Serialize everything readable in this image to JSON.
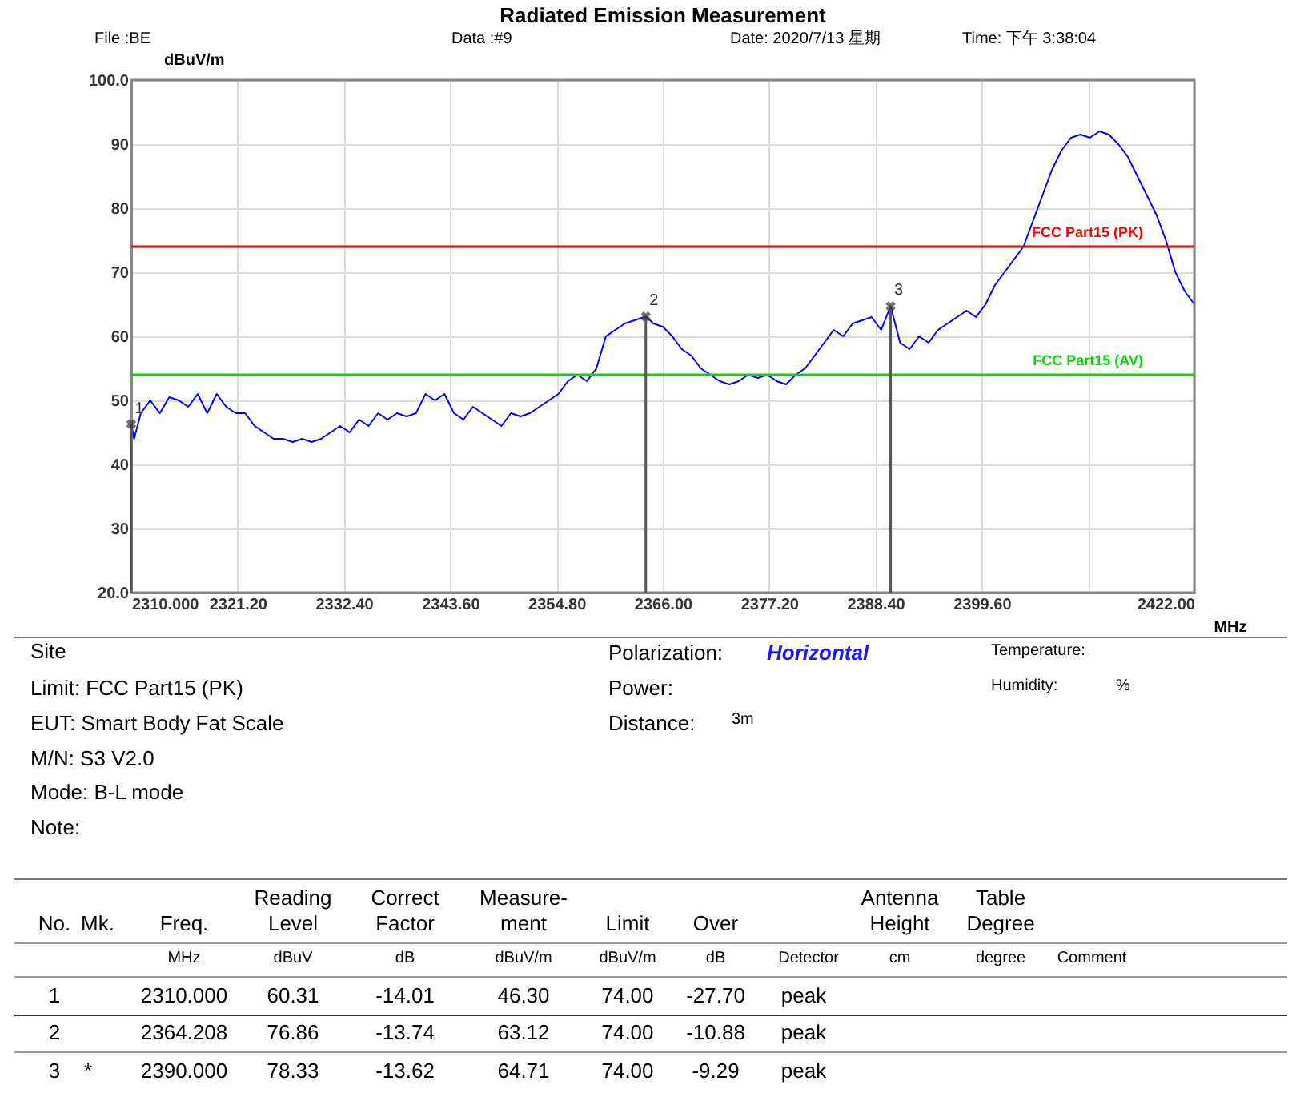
{
  "chart_data": {
    "type": "line",
    "title": "Radiated Emission Measurement",
    "xlabel": "MHz",
    "ylabel": "dBuV/m",
    "x": [
      2310,
      2310.3,
      2311,
      2312,
      2313,
      2314,
      2315,
      2316,
      2317,
      2318,
      2319,
      2320,
      2321,
      2322,
      2323,
      2324,
      2325,
      2326,
      2327,
      2328,
      2329,
      2330,
      2331,
      2332,
      2333,
      2334,
      2335,
      2336,
      2337,
      2338,
      2339,
      2340,
      2341,
      2342,
      2343,
      2344,
      2345,
      2346,
      2347,
      2348,
      2349,
      2350,
      2351,
      2352,
      2353,
      2354,
      2355,
      2356,
      2357,
      2358,
      2359,
      2360,
      2361,
      2362,
      2363,
      2364.208,
      2365,
      2366,
      2367,
      2368,
      2369,
      2370,
      2371,
      2372,
      2373,
      2374,
      2375,
      2376,
      2377,
      2378,
      2379,
      2380,
      2381,
      2382,
      2383,
      2384,
      2385,
      2386,
      2387,
      2388,
      2389,
      2390,
      2391,
      2392,
      2393,
      2394,
      2395,
      2396,
      2397,
      2398,
      2399,
      2400,
      2401,
      2402,
      2403,
      2404,
      2405,
      2406,
      2407,
      2408,
      2409,
      2410,
      2411,
      2412,
      2413,
      2414,
      2415,
      2416,
      2417,
      2418,
      2419,
      2420,
      2421,
      2422
    ],
    "series": [
      {
        "color": "#0000ff",
        "values": [
          46.3,
          44,
          48,
          50,
          48,
          50.5,
          50,
          49,
          51,
          48,
          51,
          49,
          48,
          48,
          46,
          45,
          44,
          44,
          43.5,
          44,
          43.5,
          44,
          45,
          46,
          45,
          47,
          46,
          48,
          47,
          48,
          47.5,
          48,
          51,
          50,
          51,
          48,
          47,
          49,
          48,
          47,
          46,
          48,
          47.5,
          48,
          49,
          50,
          51,
          53,
          54,
          53,
          55,
          60,
          61,
          62,
          62.5,
          63.1,
          62,
          61.5,
          60,
          58,
          57,
          55,
          54,
          53,
          52.5,
          53,
          54,
          53.5,
          54,
          53,
          52.5,
          54,
          55,
          57,
          59,
          61,
          60,
          62,
          62.5,
          63,
          61,
          64.7,
          59,
          58,
          60,
          59,
          61,
          62,
          63,
          64,
          63,
          65,
          68,
          70,
          72,
          74,
          78,
          82,
          86,
          89,
          91,
          91.5,
          91,
          92,
          91.5,
          90,
          88,
          85,
          82,
          79,
          75,
          70,
          67,
          65
        ]
      }
    ],
    "xlim": [
      2310,
      2422
    ],
    "ylim": [
      20,
      100
    ],
    "xticks": [
      {
        "value": 2310,
        "label": "2310.000"
      },
      {
        "value": 2321.2,
        "label": "2321.20"
      },
      {
        "value": 2332.4,
        "label": "2332.40"
      },
      {
        "value": 2343.6,
        "label": "2343.60"
      },
      {
        "value": 2354.8,
        "label": "2354.80"
      },
      {
        "value": 2366,
        "label": "2366.00"
      },
      {
        "value": 2377.2,
        "label": "2377.20"
      },
      {
        "value": 2388.4,
        "label": "2388.40"
      },
      {
        "value": 2399.6,
        "label": "2399.60"
      },
      {
        "value": 2410.8,
        "label": null
      },
      {
        "value": 2422,
        "label": "2422.00"
      }
    ],
    "yticks": [
      {
        "value": 20,
        "label": "20.0"
      },
      30,
      40,
      50,
      60,
      70,
      80,
      90,
      {
        "value": 100,
        "label": "100.0"
      }
    ],
    "grid": true,
    "marker": "none",
    "line_style": "solid",
    "ref_lines": [
      {
        "axis": "y",
        "value": 74,
        "label": "FCC Part15 (PK)",
        "color": "#ff0000"
      },
      {
        "axis": "y",
        "value": 54,
        "label": "FCC Part15 (AV)",
        "color": "#00dd00"
      }
    ],
    "annotations": [
      {
        "text": "1",
        "x": 2310,
        "y": 46.3
      },
      {
        "text": "2",
        "x": 2364.208,
        "y": 63.1
      },
      {
        "text": "3",
        "x": 2390,
        "y": 64.7
      },
      "File :BE",
      "Data :#9",
      "Date: 2020/7/13 星期",
      "Time: 下午 3:38:04",
      "Site",
      "Limit: FCC Part15 (PK)",
      "EUT:  Smart Body Fat Scale",
      "M/N:  S3 V2.0",
      "Mode:  B-L mode",
      "Note:",
      "Polarization:",
      "Horizontal",
      "Power:",
      "Distance:",
      "3m",
      "Temperature:",
      "Humidity:",
      "%",
      "No.",
      "Mk.",
      "Freq.",
      "Reading\nLevel",
      "Correct\nFactor",
      "Measure-\nment",
      "Limit",
      "Over",
      "Antenna\nHeight",
      "Table\nDegree",
      "MHz",
      "dBuV",
      "dB",
      "dBuV/m",
      "dBuV/m",
      "dB",
      "Detector",
      "cm",
      "degree",
      "Comment",
      "1",
      "2310.000",
      "60.31",
      "-14.01",
      "46.30",
      "74.00",
      "-27.70",
      "peak",
      "2",
      "2364.208",
      "76.86",
      "-13.74",
      "63.12",
      "74.00",
      "-10.88",
      "peak",
      "3",
      "*",
      "2390.000",
      "78.33",
      "-13.62",
      "64.71",
      "74.00",
      "-9.29",
      "peak"
    ]
  }
}
